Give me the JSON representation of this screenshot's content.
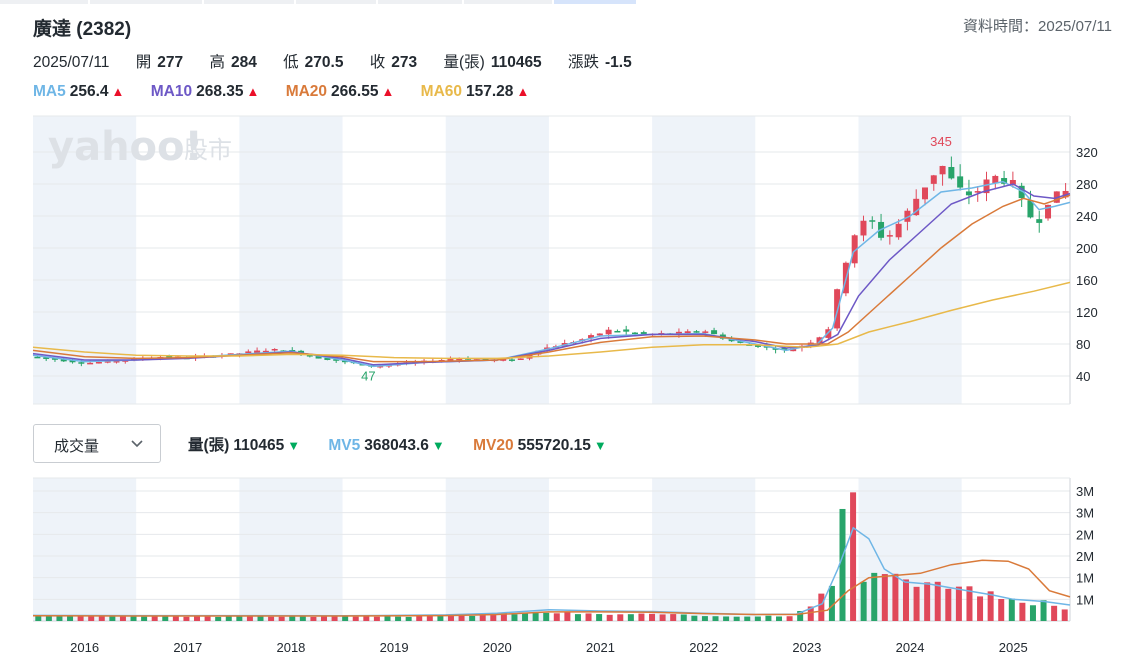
{
  "header": {
    "title": "廣達 (2382)",
    "data_time": "資料時間：2025/07/11"
  },
  "quote": {
    "date": "2025/07/11",
    "open_label": "開",
    "open": "277",
    "high_label": "高",
    "high": "284",
    "low_label": "低",
    "low": "270.5",
    "close_label": "收",
    "close": "273",
    "volume_label": "量(張)",
    "volume": "110465",
    "change_label": "漲跌",
    "change": "-1.5"
  },
  "ma_legend": [
    {
      "name": "MA5",
      "value": "256.4",
      "color": "#6fb6e6",
      "dir": "up"
    },
    {
      "name": "MA10",
      "value": "268.35",
      "color": "#6d58c6",
      "dir": "up"
    },
    {
      "name": "MA20",
      "value": "266.55",
      "color": "#d97a3a",
      "dir": "up"
    },
    {
      "name": "MA60",
      "value": "157.28",
      "color": "#e8b94a",
      "dir": "up"
    }
  ],
  "watermark": {
    "brand": "yahoo!",
    "suffix": "股市"
  },
  "indicator_dropdown": {
    "selected": "成交量"
  },
  "vol_legend": [
    {
      "name": "量(張)",
      "value": "110465",
      "color": "#232a31",
      "dir": "down"
    },
    {
      "name": "MV5",
      "value": "368043.6",
      "color": "#6fb6e6",
      "dir": "down"
    },
    {
      "name": "MV20",
      "value": "555720.15",
      "color": "#d97a3a",
      "dir": "down"
    }
  ],
  "colors": {
    "up": "#e0485a",
    "down": "#28a46a",
    "band": "#eef3f9",
    "grid": "#e6e8eb"
  },
  "chart_data": [
    {
      "type": "candlestick",
      "title": "",
      "x_range": [
        2015.5,
        2025.55
      ],
      "ylim": [
        5,
        365
      ],
      "y_ticks": [
        40,
        80,
        120,
        160,
        200,
        240,
        280,
        320
      ],
      "x_ticks": [
        "2016",
        "2017",
        "2018",
        "2019",
        "2020",
        "2021",
        "2022",
        "2023",
        "2024",
        "2025"
      ],
      "annotations": [
        {
          "text": "345",
          "x": 2024.3,
          "y": 345,
          "color": "#e0485a"
        },
        {
          "text": "47",
          "x": 2018.75,
          "y": 47,
          "color": "#28a46a"
        }
      ],
      "anchors": [
        [
          2015.5,
          64
        ],
        [
          2016.0,
          56
        ],
        [
          2016.4,
          60
        ],
        [
          2016.7,
          64
        ],
        [
          2017.0,
          63
        ],
        [
          2017.4,
          67
        ],
        [
          2017.8,
          73
        ],
        [
          2018.0,
          72
        ],
        [
          2018.2,
          64
        ],
        [
          2018.5,
          58
        ],
        [
          2018.8,
          52
        ],
        [
          2019.2,
          57
        ],
        [
          2019.6,
          62
        ],
        [
          2020.0,
          60
        ],
        [
          2020.2,
          60
        ],
        [
          2020.4,
          73
        ],
        [
          2020.8,
          85
        ],
        [
          2021.1,
          98
        ],
        [
          2021.4,
          92
        ],
        [
          2021.8,
          94
        ],
        [
          2022.0,
          97
        ],
        [
          2022.3,
          82
        ],
        [
          2022.6,
          76
        ],
        [
          2022.8,
          72
        ],
        [
          2023.0,
          80
        ],
        [
          2023.2,
          95
        ],
        [
          2023.3,
          150
        ],
        [
          2023.45,
          215
        ],
        [
          2023.6,
          240
        ],
        [
          2023.75,
          208
        ],
        [
          2023.95,
          240
        ],
        [
          2024.1,
          270
        ],
        [
          2024.3,
          305
        ],
        [
          2024.45,
          275
        ],
        [
          2024.6,
          265
        ],
        [
          2024.8,
          290
        ],
        [
          2025.0,
          280
        ],
        [
          2025.15,
          240
        ],
        [
          2025.25,
          235
        ],
        [
          2025.35,
          262
        ],
        [
          2025.55,
          273
        ]
      ],
      "series": [
        {
          "name": "MA5",
          "color": "#6fb6e6",
          "points": [
            [
              2015.5,
              66
            ],
            [
              2016,
              58
            ],
            [
              2016.5,
              60
            ],
            [
              2017,
              63
            ],
            [
              2017.5,
              67
            ],
            [
              2018,
              71
            ],
            [
              2018.5,
              60
            ],
            [
              2018.8,
              52
            ],
            [
              2019.3,
              57
            ],
            [
              2020,
              60
            ],
            [
              2020.5,
              74
            ],
            [
              2021,
              90
            ],
            [
              2021.5,
              92
            ],
            [
              2022,
              93
            ],
            [
              2022.5,
              80
            ],
            [
              2022.8,
              72
            ],
            [
              2023.1,
              80
            ],
            [
              2023.25,
              100
            ],
            [
              2023.45,
              195
            ],
            [
              2023.7,
              222
            ],
            [
              2024.0,
              240
            ],
            [
              2024.3,
              270
            ],
            [
              2024.6,
              275
            ],
            [
              2024.9,
              283
            ],
            [
              2025.1,
              270
            ],
            [
              2025.25,
              248
            ],
            [
              2025.4,
              252
            ],
            [
              2025.55,
              257
            ]
          ]
        },
        {
          "name": "MA10",
          "color": "#6d58c6",
          "points": [
            [
              2015.5,
              68
            ],
            [
              2016,
              60
            ],
            [
              2016.5,
              60
            ],
            [
              2017,
              62
            ],
            [
              2017.5,
              66
            ],
            [
              2018,
              70
            ],
            [
              2018.5,
              62
            ],
            [
              2018.8,
              54
            ],
            [
              2019.3,
              57
            ],
            [
              2020,
              60
            ],
            [
              2020.5,
              72
            ],
            [
              2021,
              87
            ],
            [
              2021.5,
              92
            ],
            [
              2022,
              92
            ],
            [
              2022.5,
              83
            ],
            [
              2022.8,
              75
            ],
            [
              2023.1,
              78
            ],
            [
              2023.3,
              92
            ],
            [
              2023.5,
              140
            ],
            [
              2023.8,
              185
            ],
            [
              2024.1,
              220
            ],
            [
              2024.4,
              255
            ],
            [
              2024.7,
              270
            ],
            [
              2025.0,
              280
            ],
            [
              2025.2,
              265
            ],
            [
              2025.4,
              262
            ],
            [
              2025.55,
              268
            ]
          ]
        },
        {
          "name": "MA20",
          "color": "#d97a3a",
          "points": [
            [
              2015.5,
              72
            ],
            [
              2016,
              64
            ],
            [
              2016.5,
              62
            ],
            [
              2017,
              63
            ],
            [
              2017.5,
              66
            ],
            [
              2018,
              69
            ],
            [
              2018.5,
              64
            ],
            [
              2018.8,
              58
            ],
            [
              2019.3,
              58
            ],
            [
              2020,
              60
            ],
            [
              2020.5,
              70
            ],
            [
              2021,
              82
            ],
            [
              2021.5,
              89
            ],
            [
              2022,
              90
            ],
            [
              2022.5,
              85
            ],
            [
              2022.8,
              80
            ],
            [
              2023.2,
              80
            ],
            [
              2023.4,
              95
            ],
            [
              2023.7,
              130
            ],
            [
              2024.0,
              165
            ],
            [
              2024.3,
              200
            ],
            [
              2024.6,
              230
            ],
            [
              2024.9,
              252
            ],
            [
              2025.1,
              262
            ],
            [
              2025.3,
              255
            ],
            [
              2025.55,
              266
            ]
          ]
        },
        {
          "name": "MA60",
          "color": "#e8b94a",
          "points": [
            [
              2015.5,
              76
            ],
            [
              2016,
              70
            ],
            [
              2016.5,
              66
            ],
            [
              2017,
              65
            ],
            [
              2017.5,
              65
            ],
            [
              2018,
              67
            ],
            [
              2018.5,
              66
            ],
            [
              2019,
              63
            ],
            [
              2019.5,
              62
            ],
            [
              2020,
              62
            ],
            [
              2020.5,
              65
            ],
            [
              2021,
              70
            ],
            [
              2021.5,
              76
            ],
            [
              2022,
              79
            ],
            [
              2022.5,
              79
            ],
            [
              2023.0,
              76
            ],
            [
              2023.3,
              80
            ],
            [
              2023.6,
              95
            ],
            [
              2024.0,
              108
            ],
            [
              2024.4,
              122
            ],
            [
              2024.8,
              135
            ],
            [
              2025.2,
              146
            ],
            [
              2025.55,
              157
            ]
          ]
        }
      ]
    },
    {
      "type": "bar",
      "title": "Volume",
      "ylim": [
        0,
        3300000
      ],
      "y_ticks": [
        500000,
        1000000,
        1500000,
        2000000,
        2500000,
        3000000
      ],
      "y_tick_labels": [
        "1M",
        "1M",
        "2M",
        "2M",
        "3M",
        "3M"
      ],
      "volumes": [
        [
          2016.0,
          110000
        ],
        [
          2018.0,
          110000
        ],
        [
          2019.5,
          110000
        ],
        [
          2020.0,
          160000
        ],
        [
          2020.5,
          200000
        ],
        [
          2021.0,
          150000
        ],
        [
          2021.4,
          160000
        ],
        [
          2022.0,
          120000
        ],
        [
          2022.5,
          110000
        ],
        [
          2022.85,
          130000
        ],
        [
          2023.1,
          480000
        ],
        [
          2023.3,
          1000000
        ],
        [
          2023.35,
          2700000
        ],
        [
          2023.42,
          3150000
        ],
        [
          2023.55,
          1000000
        ],
        [
          2023.7,
          950000
        ],
        [
          2023.85,
          1250000
        ],
        [
          2024.0,
          800000
        ],
        [
          2024.15,
          900000
        ],
        [
          2024.3,
          800000
        ],
        [
          2024.5,
          750000
        ],
        [
          2024.7,
          650000
        ],
        [
          2024.9,
          550000
        ],
        [
          2025.1,
          400000
        ],
        [
          2025.3,
          450000
        ],
        [
          2025.45,
          380000
        ],
        [
          2025.55,
          110000
        ]
      ],
      "series": [
        {
          "name": "MV5",
          "color": "#6fb6e6",
          "points": [
            [
              2015.5,
              130000
            ],
            [
              2016.5,
              125000
            ],
            [
              2017.5,
              125000
            ],
            [
              2018.5,
              120000
            ],
            [
              2019.5,
              140000
            ],
            [
              2020,
              180000
            ],
            [
              2020.5,
              260000
            ],
            [
              2021,
              230000
            ],
            [
              2021.5,
              220000
            ],
            [
              2022,
              180000
            ],
            [
              2022.5,
              150000
            ],
            [
              2022.9,
              160000
            ],
            [
              2023.15,
              400000
            ],
            [
              2023.3,
              1200000
            ],
            [
              2023.45,
              2150000
            ],
            [
              2023.6,
              1900000
            ],
            [
              2023.75,
              1200000
            ],
            [
              2023.95,
              900000
            ],
            [
              2024.2,
              850000
            ],
            [
              2024.5,
              720000
            ],
            [
              2024.8,
              600000
            ],
            [
              2025.0,
              500000
            ],
            [
              2025.3,
              450000
            ],
            [
              2025.55,
              370000
            ]
          ]
        },
        {
          "name": "MV20",
          "color": "#d97a3a",
          "points": [
            [
              2015.5,
              120000
            ],
            [
              2016.5,
              115000
            ],
            [
              2017.5,
              115000
            ],
            [
              2018.5,
              115000
            ],
            [
              2019.5,
              125000
            ],
            [
              2020,
              150000
            ],
            [
              2020.5,
              210000
            ],
            [
              2021,
              210000
            ],
            [
              2021.5,
              200000
            ],
            [
              2022,
              170000
            ],
            [
              2022.5,
              150000
            ],
            [
              2022.9,
              150000
            ],
            [
              2023.2,
              250000
            ],
            [
              2023.4,
              700000
            ],
            [
              2023.6,
              1000000
            ],
            [
              2023.85,
              1050000
            ],
            [
              2024.1,
              1100000
            ],
            [
              2024.4,
              1300000
            ],
            [
              2024.7,
              1400000
            ],
            [
              2024.95,
              1380000
            ],
            [
              2025.15,
              1200000
            ],
            [
              2025.35,
              700000
            ],
            [
              2025.55,
              556000
            ]
          ]
        }
      ]
    }
  ]
}
